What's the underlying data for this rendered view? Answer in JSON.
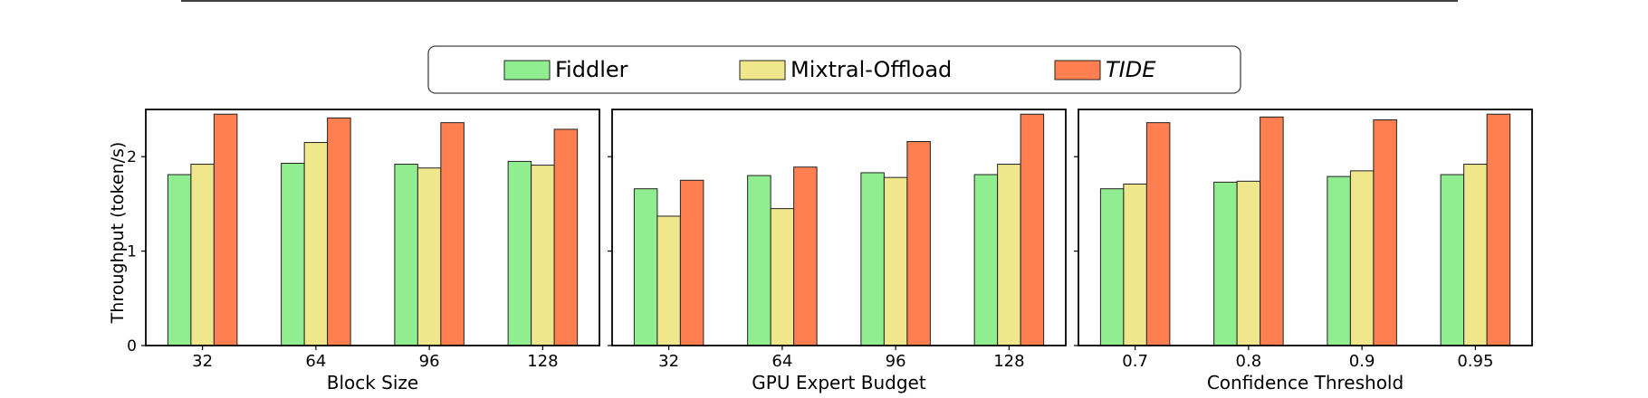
{
  "chart_data": [
    {
      "type": "bar",
      "xlabel": "Block Size",
      "ylabel": "Throughput (token/s)",
      "categories": [
        "32",
        "64",
        "96",
        "128"
      ],
      "ylim": [
        0,
        2.5
      ],
      "yticks": [
        "0",
        "1",
        "2"
      ],
      "series": [
        {
          "name": "Fiddler",
          "values": [
            1.81,
            1.93,
            1.92,
            1.95
          ]
        },
        {
          "name": "Mixtral-Offload",
          "values": [
            1.92,
            2.15,
            1.88,
            1.91
          ]
        },
        {
          "name": "TIDE",
          "values": [
            2.45,
            2.41,
            2.36,
            2.29
          ]
        }
      ]
    },
    {
      "type": "bar",
      "xlabel": "GPU Expert Budget",
      "ylabel": "",
      "categories": [
        "32",
        "64",
        "96",
        "128"
      ],
      "ylim": [
        0,
        2.5
      ],
      "yticks": [
        "",
        "",
        ""
      ],
      "series": [
        {
          "name": "Fiddler",
          "values": [
            1.66,
            1.8,
            1.83,
            1.81
          ]
        },
        {
          "name": "Mixtral-Offload",
          "values": [
            1.37,
            1.45,
            1.78,
            1.92
          ]
        },
        {
          "name": "TIDE",
          "values": [
            1.75,
            1.89,
            2.16,
            2.45
          ]
        }
      ]
    },
    {
      "type": "bar",
      "xlabel": "Confidence Threshold",
      "ylabel": "",
      "categories": [
        "0.7",
        "0.8",
        "0.9",
        "0.95"
      ],
      "ylim": [
        0,
        2.5
      ],
      "yticks": [
        "",
        "",
        ""
      ],
      "series": [
        {
          "name": "Fiddler",
          "values": [
            1.66,
            1.73,
            1.79,
            1.81
          ]
        },
        {
          "name": "Mixtral-Offload",
          "values": [
            1.71,
            1.74,
            1.85,
            1.92
          ]
        },
        {
          "name": "TIDE",
          "values": [
            2.36,
            2.42,
            2.39,
            2.45
          ]
        }
      ]
    }
  ],
  "legend": {
    "placement": "top-center",
    "items": [
      {
        "label": "Fiddler",
        "italic": false
      },
      {
        "label": "Mixtral-Offload",
        "italic": false
      },
      {
        "label": "TIDE",
        "italic": true
      }
    ]
  },
  "colors": {
    "Fiddler": "#90ee90",
    "Mixtral-Offload": "#f0e68c",
    "TIDE": "#ff7f50",
    "edge": "#222222"
  }
}
